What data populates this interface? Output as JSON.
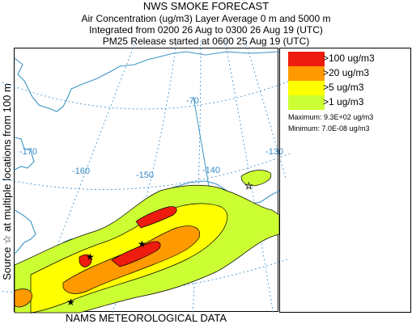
{
  "titles": {
    "line1": "NWS SMOKE FORECAST",
    "line2": "Air Concentration (ug/m3) Layer Average    0 m and  5000 m",
    "line3": "Integrated from 0200 26 Aug to 0300 26 Aug 19 (UTC)",
    "line4": "PM25 Release started at 0600 25 Aug 19 (UTC)"
  },
  "side_label": "Source ☆  at multiple locations     from   100 m",
  "bottom_label": "NAMS METEOROLOGICAL DATA",
  "longitude_labels": [
    "-170",
    "-160",
    "-150",
    "-140",
    "-130",
    "-70"
  ],
  "legend": {
    "items": [
      {
        "label": ">100 ug/m3",
        "color": "#ee1c0e"
      },
      {
        "label": ">20 ug/m3",
        "color": "#ff9900"
      },
      {
        "label": ">5 ug/m3",
        "color": "#ffff00"
      },
      {
        "label": ">1 ug/m3",
        "color": "#ccff33"
      }
    ],
    "maximum": "Maximum: 9.3E+02 ug/m3",
    "minimum": "Minimum: 7.0E-08 ug/m3"
  },
  "colors": {
    "coastline": "#3d94c6",
    "graticule": "#3a8cc8",
    "border": "#4a9ec9",
    "contour_outline": "#000000"
  }
}
